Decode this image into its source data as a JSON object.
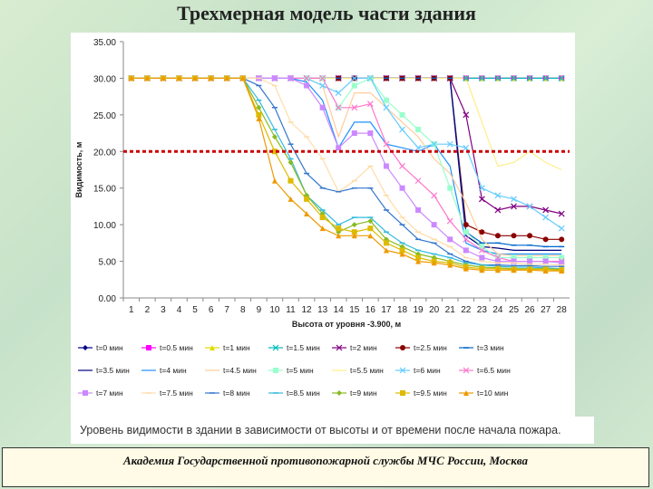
{
  "slide": {
    "title": "Трехмерная модель части здания",
    "caption": "Уровень видимости в здании в зависимости от высоты и от времени после начала пожара.",
    "footer": "Академия Государственной противопожарной службы МЧС России, Москва"
  },
  "chart_data": {
    "type": "line",
    "title": "",
    "xlabel": "Высота от уровня -3.900, м",
    "ylabel": "Видимость, м",
    "ylim": [
      0,
      35
    ],
    "yticks": [
      "0.00",
      "5.00",
      "10.00",
      "15.00",
      "20.00",
      "25.00",
      "30.00",
      "35.00"
    ],
    "categories": [
      1,
      2,
      3,
      4,
      5,
      6,
      7,
      8,
      9,
      10,
      11,
      12,
      13,
      14,
      15,
      16,
      17,
      18,
      19,
      20,
      21,
      22,
      23,
      24,
      25,
      26,
      27,
      28
    ],
    "threshold": {
      "value": 20,
      "color": "#cc0000"
    },
    "legend_position": "bottom",
    "series": [
      {
        "name": "t=0 мин",
        "color": "#00008b",
        "marker": "diamond",
        "values": [
          30,
          30,
          30,
          30,
          30,
          30,
          30,
          30,
          30,
          30,
          30,
          30,
          30,
          30,
          30,
          30,
          30,
          30,
          30,
          30,
          30,
          30,
          30,
          30,
          30,
          30,
          30,
          30
        ]
      },
      {
        "name": "t=0.5 мин",
        "color": "#ff00ff",
        "marker": "square",
        "values": [
          30,
          30,
          30,
          30,
          30,
          30,
          30,
          30,
          30,
          30,
          30,
          30,
          30,
          30,
          30,
          30,
          30,
          30,
          30,
          30,
          30,
          30,
          30,
          30,
          30,
          30,
          30,
          30
        ]
      },
      {
        "name": "t=1 мин",
        "color": "#dddd00",
        "marker": "triangle",
        "values": [
          30,
          30,
          30,
          30,
          30,
          30,
          30,
          30,
          30,
          30,
          30,
          30,
          30,
          30,
          30,
          30,
          30,
          30,
          30,
          30,
          30,
          30,
          30,
          30,
          30,
          30,
          30,
          30
        ]
      },
      {
        "name": "t=1.5 мин",
        "color": "#00bbbb",
        "marker": "x",
        "values": [
          30,
          30,
          30,
          30,
          30,
          30,
          30,
          30,
          30,
          30,
          30,
          30,
          30,
          30,
          30,
          30,
          30,
          30,
          30,
          30,
          30,
          30,
          30,
          30,
          30,
          30,
          30,
          30
        ]
      },
      {
        "name": "t=2 мин",
        "color": "#800080",
        "marker": "x",
        "values": [
          30,
          30,
          30,
          30,
          30,
          30,
          30,
          30,
          30,
          30,
          30,
          30,
          30,
          30,
          30,
          30,
          30,
          30,
          30,
          30,
          30,
          25,
          13.5,
          12,
          12.5,
          12.5,
          12,
          11.5
        ]
      },
      {
        "name": "t=2.5 мин",
        "color": "#8b0000",
        "marker": "dot",
        "values": [
          30,
          30,
          30,
          30,
          30,
          30,
          30,
          30,
          30,
          30,
          30,
          30,
          30,
          30,
          30,
          30,
          30,
          30,
          30,
          30,
          30,
          10,
          9,
          8.5,
          8.5,
          8.5,
          8,
          8
        ]
      },
      {
        "name": "t=3 мин",
        "color": "#0066cc",
        "marker": "bar",
        "values": [
          30,
          30,
          30,
          30,
          30,
          30,
          30,
          30,
          30,
          30,
          30,
          30,
          30,
          30,
          30,
          30,
          30,
          30,
          30,
          30,
          30,
          9,
          7.5,
          7.5,
          7.2,
          7.2,
          7,
          7
        ]
      },
      {
        "name": "t=3.5 мин",
        "color": "#000080",
        "marker": "none",
        "values": [
          30,
          30,
          30,
          30,
          30,
          30,
          30,
          30,
          30,
          30,
          30,
          30,
          30,
          30,
          30,
          30,
          30,
          30,
          30,
          30,
          30,
          8.5,
          7,
          6.8,
          6.5,
          6.5,
          6.5,
          6.5
        ]
      },
      {
        "name": "t=4 мин",
        "color": "#1e90ff",
        "marker": "none",
        "values": [
          30,
          30,
          30,
          30,
          30,
          30,
          30,
          30,
          30,
          30,
          30,
          29.5,
          27,
          20.5,
          24,
          24,
          21,
          20.5,
          20,
          21,
          18,
          7.5,
          6.5,
          6,
          6,
          6,
          6,
          6
        ]
      },
      {
        "name": "t=4.5 мин",
        "color": "#ffcc99",
        "marker": "none",
        "values": [
          30,
          30,
          30,
          30,
          30,
          30,
          30,
          30,
          30,
          30,
          30,
          30,
          29,
          22,
          28,
          28,
          26,
          24,
          22,
          19,
          17,
          13,
          8,
          6,
          5.8,
          5.8,
          5.8,
          5.8
        ]
      },
      {
        "name": "t=5 мин",
        "color": "#99ffcc",
        "marker": "square",
        "values": [
          30,
          30,
          30,
          30,
          30,
          30,
          30,
          30,
          30,
          30,
          30,
          30,
          30,
          26,
          29,
          30,
          27,
          25,
          23,
          21,
          15,
          9,
          7,
          5.5,
          5.5,
          5.5,
          5.5,
          5.5
        ]
      },
      {
        "name": "t=5.5 мин",
        "color": "#ffee88",
        "marker": "none",
        "values": [
          30,
          30,
          30,
          30,
          30,
          30,
          30,
          30,
          30,
          30,
          30,
          30,
          30,
          30,
          30,
          30,
          30,
          30,
          30,
          30,
          30,
          30,
          24,
          18,
          18.5,
          20,
          18.5,
          17.5
        ]
      },
      {
        "name": "t=6 мин",
        "color": "#66ccff",
        "marker": "x",
        "values": [
          30,
          30,
          30,
          30,
          30,
          30,
          30,
          30,
          30,
          30,
          30,
          30,
          29,
          28,
          30,
          30,
          26,
          23,
          20.5,
          21,
          21,
          20.5,
          15,
          14,
          13.5,
          12.5,
          11,
          9.5
        ]
      },
      {
        "name": "t=6.5 мин",
        "color": "#ff77cc",
        "marker": "x",
        "values": [
          30,
          30,
          30,
          30,
          30,
          30,
          30,
          30,
          30,
          30,
          30,
          30,
          30,
          26,
          26,
          26.5,
          21,
          18,
          16,
          14,
          10.5,
          8,
          6.5,
          5.5,
          5,
          5,
          5,
          5
        ]
      },
      {
        "name": "t=7 мин",
        "color": "#cc88ff",
        "marker": "square",
        "values": [
          30,
          30,
          30,
          30,
          30,
          30,
          30,
          30,
          30,
          30,
          30,
          29,
          26,
          20.5,
          22.5,
          22.5,
          18,
          15,
          12,
          10,
          8,
          6.5,
          5.5,
          5,
          5,
          5,
          5,
          4.8
        ]
      },
      {
        "name": "t=7.5 мин",
        "color": "#ffddaa",
        "marker": "bar",
        "values": [
          30,
          30,
          30,
          30,
          30,
          30,
          30,
          30,
          30,
          29,
          24,
          22,
          19,
          14.5,
          16,
          18,
          14,
          11,
          9,
          8,
          7,
          5.5,
          5,
          4.8,
          4.8,
          4.6,
          4.6,
          4.5
        ]
      },
      {
        "name": "t=8 мин",
        "color": "#3377cc",
        "marker": "bar",
        "values": [
          30,
          30,
          30,
          30,
          30,
          30,
          30,
          30,
          29,
          26,
          21,
          17,
          15,
          14.5,
          15,
          15,
          12,
          10,
          8,
          7.5,
          6,
          5,
          4.5,
          4.5,
          4.4,
          4.4,
          4.3,
          4.3
        ]
      },
      {
        "name": "t=8.5 мин",
        "color": "#33bbdd",
        "marker": "bar",
        "values": [
          30,
          30,
          30,
          30,
          30,
          30,
          30,
          30,
          27,
          23,
          19,
          14,
          12,
          10,
          11,
          11,
          9,
          7.5,
          6.5,
          6,
          5.5,
          4.8,
          4.5,
          4.3,
          4.2,
          4.2,
          4.1,
          4
        ]
      },
      {
        "name": "t=9 мин",
        "color": "#88bb22",
        "marker": "diamond",
        "values": [
          30,
          30,
          30,
          30,
          30,
          30,
          30,
          30,
          26,
          22,
          18.5,
          14,
          11.5,
          9,
          10,
          10.5,
          8,
          7,
          6,
          5.5,
          5,
          4.5,
          4.2,
          4.1,
          4,
          4,
          4,
          3.9
        ]
      },
      {
        "name": "t=9.5 мин",
        "color": "#ddbb00",
        "marker": "square",
        "values": [
          30,
          30,
          30,
          30,
          30,
          30,
          30,
          30,
          25,
          20,
          16,
          13.5,
          11,
          9.5,
          9,
          9.5,
          7.5,
          6.5,
          5.5,
          5,
          4.8,
          4.2,
          4,
          4,
          3.9,
          3.9,
          3.9,
          3.8
        ]
      },
      {
        "name": "t=10 мин",
        "color": "#ee9900",
        "marker": "triangle",
        "values": [
          30,
          30,
          30,
          30,
          30,
          30,
          30,
          30,
          24.5,
          16,
          13.5,
          11.5,
          9.5,
          8.5,
          8.5,
          8.5,
          6.5,
          6,
          5,
          4.8,
          4.5,
          4,
          3.8,
          3.8,
          3.8,
          3.8,
          3.7,
          3.7
        ]
      }
    ]
  }
}
